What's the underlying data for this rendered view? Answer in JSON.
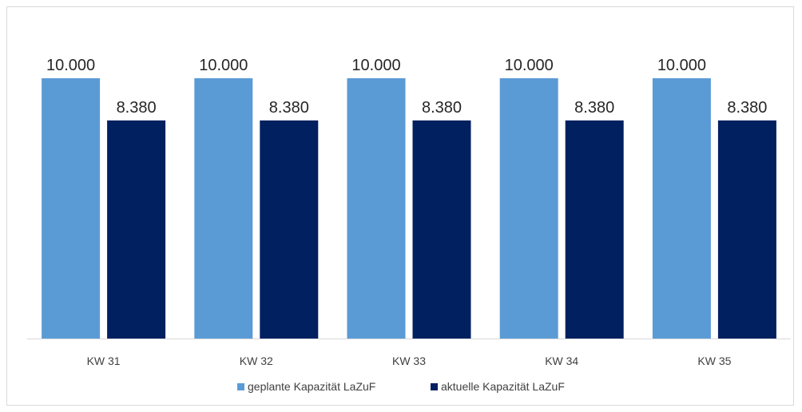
{
  "chart_data": {
    "type": "bar",
    "categories": [
      "KW 31",
      "KW 32",
      "KW 33",
      "KW 34",
      "KW 35"
    ],
    "series": [
      {
        "name": "geplante Kapazität LaZuF",
        "values": [
          10000,
          10000,
          10000,
          10000,
          10000
        ],
        "labels": [
          "10.000",
          "10.000",
          "10.000",
          "10.000",
          "10.000"
        ],
        "color": "#5b9bd5"
      },
      {
        "name": "aktuelle Kapazität LaZuF",
        "values": [
          8380,
          8380,
          8380,
          8380,
          8380
        ],
        "labels": [
          "8.380",
          "8.380",
          "8.380",
          "8.380",
          "8.380"
        ],
        "color": "#002060"
      }
    ],
    "ylim": [
      0,
      10000
    ],
    "grid": false,
    "legend_position": "bottom"
  }
}
